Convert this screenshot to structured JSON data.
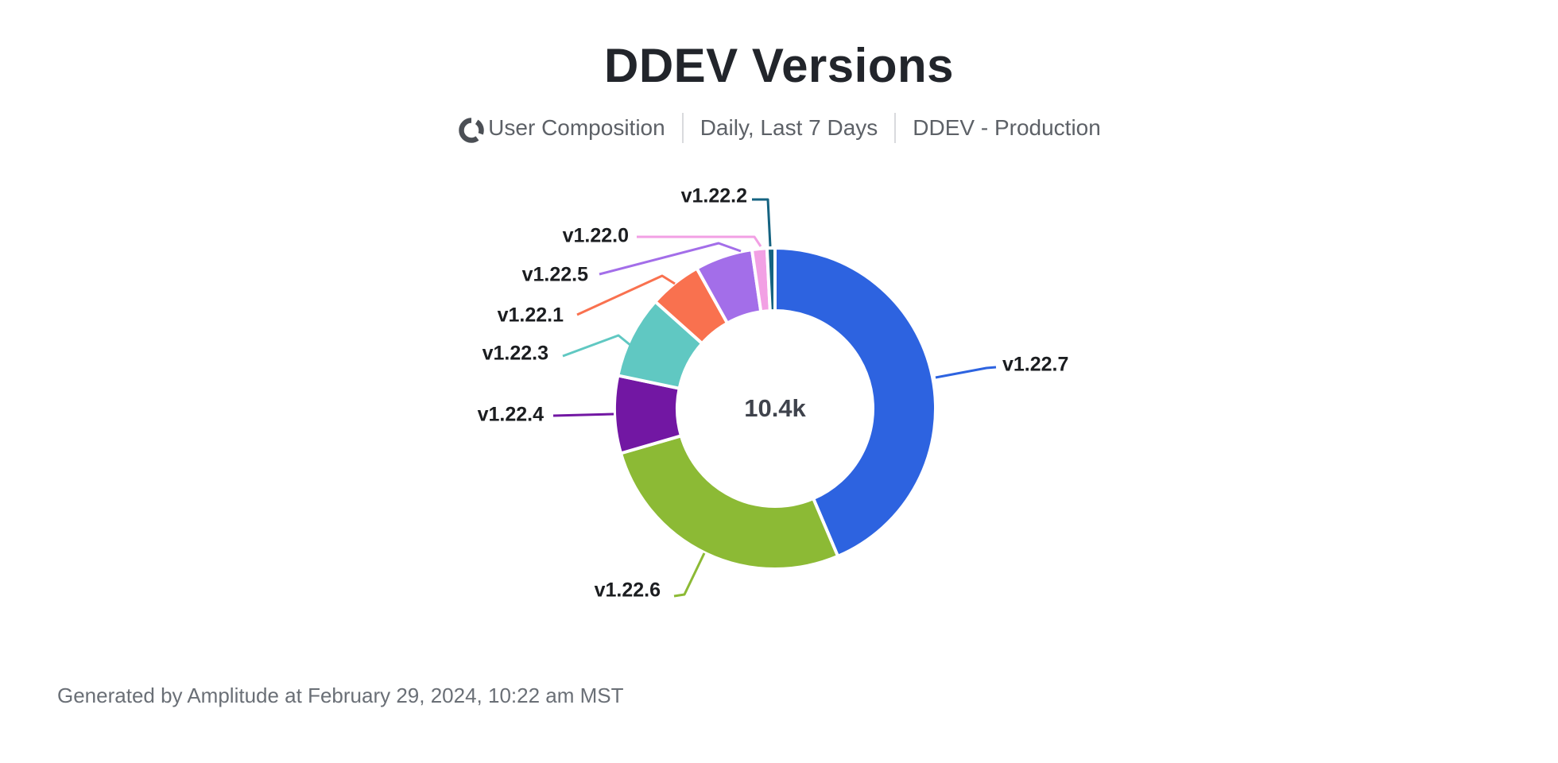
{
  "title": "DDEV Versions",
  "subtitle": {
    "icon": "donut-chart-icon",
    "metric": "User Composition",
    "interval": "Daily, Last 7 Days",
    "project": "DDEV - Production"
  },
  "footer": "Generated by Amplitude at February 29, 2024, 10:22 am MST",
  "chart_data": {
    "type": "pie",
    "donut": true,
    "title": "DDEV Versions",
    "center_label": "10.4k",
    "start_angle_deg": 0,
    "direction": "clockwise",
    "legend_position": "callout-labels",
    "segments": [
      {
        "label": "v1.22.7",
        "percent": 43.6,
        "color": "#2d63e0"
      },
      {
        "label": "v1.22.6",
        "percent": 26.9,
        "color": "#8cba35"
      },
      {
        "label": "v1.22.4",
        "percent": 7.8,
        "color": "#7217a3"
      },
      {
        "label": "v1.22.3",
        "percent": 8.3,
        "color": "#60c8c2"
      },
      {
        "label": "v1.22.1",
        "percent": 5.3,
        "color": "#f9714f"
      },
      {
        "label": "v1.22.5",
        "percent": 5.8,
        "color": "#a36ee9"
      },
      {
        "label": "v1.22.0",
        "percent": 1.5,
        "color": "#f2a0e4"
      },
      {
        "label": "v1.22.2",
        "percent": 0.8,
        "color": "#156381"
      }
    ]
  },
  "colors": {
    "title_text": "#22252b",
    "subtitle_text": "#5d6167",
    "center_text": "#3f434c",
    "label_text": "#1b1d20",
    "footer_text": "#6a6f76"
  }
}
